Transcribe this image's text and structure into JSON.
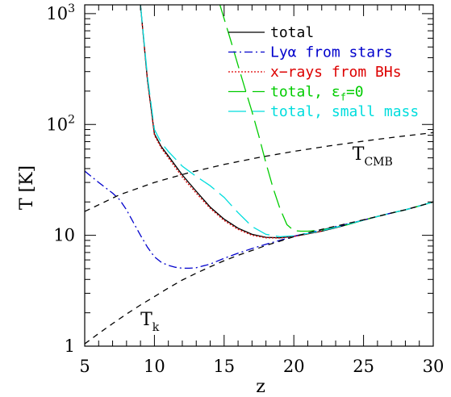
{
  "chart_data": {
    "type": "line",
    "xlabel": "z",
    "ylabel": "T [K]",
    "xlim": [
      5,
      30
    ],
    "ylim": [
      1,
      1200
    ],
    "yscale": "log",
    "x_ticks": [
      5,
      10,
      15,
      20,
      25,
      30
    ],
    "x_tick_labels": [
      "5",
      "10",
      "15",
      "20",
      "25",
      "30"
    ],
    "y_ticks": [
      1,
      10,
      100,
      1000
    ],
    "y_tick_labels": [
      {
        "base": "1",
        "exp": ""
      },
      {
        "base": "10",
        "exp": ""
      },
      {
        "base": "10",
        "exp": "2"
      },
      {
        "base": "10",
        "exp": "3"
      }
    ],
    "legend_position": "top-right",
    "grid": false,
    "annotations": [
      {
        "label": "T",
        "sub": "CMB",
        "x": 24.2,
        "y": 48
      },
      {
        "label": "T",
        "sub": "k",
        "x": 9.0,
        "y": 1.55
      }
    ],
    "series": [
      {
        "name": "total",
        "color": "#000000",
        "dash": "",
        "x": [
          9.0,
          9.5,
          10.0,
          10.5,
          11.0,
          12.0,
          13.0,
          14.0,
          15.0,
          16.0,
          17.0,
          18.0,
          19.0,
          20.0,
          21.0,
          22.0,
          23.0,
          24.0,
          25.0,
          26.0,
          27.0,
          28.0,
          29.0,
          30.0
        ],
        "y": [
          1200,
          250,
          82,
          63,
          52,
          35,
          25,
          18,
          14,
          11.6,
          10.2,
          9.6,
          9.5,
          9.8,
          10.3,
          10.9,
          11.7,
          12.6,
          13.7,
          14.8,
          15.9,
          17.0,
          18.4,
          20.0
        ]
      },
      {
        "name": "Lyα from stars",
        "color": "#0000cc",
        "dash": "10,4,2,4",
        "x": [
          5.0,
          6.0,
          7.0,
          7.5,
          8.0,
          8.5,
          9.0,
          9.5,
          10.0,
          10.5,
          11.0,
          11.5,
          12.0,
          12.5,
          13.0,
          14.0,
          15.0,
          16.0,
          17.0,
          18.0,
          19.0,
          20.0,
          21.0,
          22.0,
          23.0,
          24.0,
          25.0,
          26.0,
          27.0,
          28.0,
          29.0,
          30.0
        ],
        "y": [
          38,
          30,
          24,
          21,
          17,
          13,
          10,
          7.8,
          6.4,
          5.7,
          5.35,
          5.15,
          5.05,
          5.05,
          5.1,
          5.5,
          6.2,
          6.9,
          7.6,
          8.3,
          9.0,
          9.8,
          10.5,
          11.2,
          12.0,
          12.8,
          13.7,
          14.8,
          15.9,
          17.0,
          18.4,
          20.0
        ]
      },
      {
        "name": "x−rays from BHs",
        "color": "#dd0000",
        "dash": "2,2",
        "x": [
          9.0,
          9.5,
          10.0,
          10.5,
          11.0,
          12.0,
          13.0,
          14.0,
          15.0,
          16.0,
          17.0,
          18.0,
          19.0,
          20.0,
          21.0,
          22.0
        ],
        "y": [
          1200,
          250,
          80,
          61,
          50,
          33.5,
          24,
          17.5,
          13.6,
          11.3,
          10.0,
          9.5,
          9.45,
          9.75,
          10.3,
          10.9
        ]
      },
      {
        "name": "total, ε_f=0",
        "color": "#00cc00",
        "dash": "22,8",
        "x": [
          14.7,
          15.0,
          15.5,
          16.0,
          16.5,
          17.0,
          17.5,
          18.0,
          18.5,
          19.0,
          19.5,
          20.0,
          20.5,
          21.0,
          22.0,
          23.0,
          24.0,
          25.0,
          26.0,
          27.0,
          28.0,
          29.0,
          30.0
        ],
        "y": [
          1200,
          900,
          560,
          340,
          210,
          130,
          78,
          45,
          27,
          17.5,
          12.5,
          11.0,
          10.9,
          10.9,
          11.2,
          11.8,
          12.6,
          13.7,
          14.8,
          15.9,
          17.0,
          18.4,
          20.0
        ]
      },
      {
        "name": "total, small mass",
        "color": "#00dddd",
        "dash": "22,8",
        "x": [
          9.0,
          9.5,
          10.0,
          10.5,
          11.0,
          12.0,
          13.0,
          14.0,
          15.0,
          16.0,
          17.0,
          18.0,
          19.0,
          20.0,
          21.0,
          22.0,
          23.0,
          24.0,
          25.0,
          26.0,
          27.0,
          28.0,
          29.0,
          30.0
        ],
        "y": [
          1200,
          270,
          90,
          68,
          57,
          42,
          34,
          28,
          22,
          16,
          12,
          10.2,
          9.7,
          9.9,
          10.4,
          11.0,
          11.8,
          12.7,
          13.7,
          14.8,
          15.9,
          17.0,
          18.4,
          20.0
        ]
      },
      {
        "name": "",
        "color": "#000000",
        "dash": "7,6",
        "x": [
          5,
          7.5,
          10,
          12.5,
          15,
          17.5,
          20,
          22.5,
          25,
          27.5,
          30
        ],
        "y": [
          16.4,
          23.2,
          30.0,
          36.8,
          43.6,
          50.4,
          57.2,
          64.0,
          70.8,
          77.6,
          84.4
        ]
      },
      {
        "name": "",
        "color": "#000000",
        "dash": "7,6",
        "x": [
          5,
          6,
          7,
          8,
          9,
          10,
          11,
          12,
          13,
          14,
          15,
          16,
          17,
          18,
          19,
          20,
          21,
          22,
          23,
          24,
          25,
          26,
          27,
          28,
          29,
          30
        ],
        "y": [
          1.05,
          1.3,
          1.6,
          1.95,
          2.35,
          2.8,
          3.35,
          3.95,
          4.55,
          5.2,
          5.9,
          6.6,
          7.3,
          8.1,
          8.85,
          9.7,
          10.5,
          11.3,
          12.1,
          12.9,
          13.8,
          14.8,
          15.9,
          17.0,
          18.4,
          20.0
        ]
      }
    ]
  }
}
